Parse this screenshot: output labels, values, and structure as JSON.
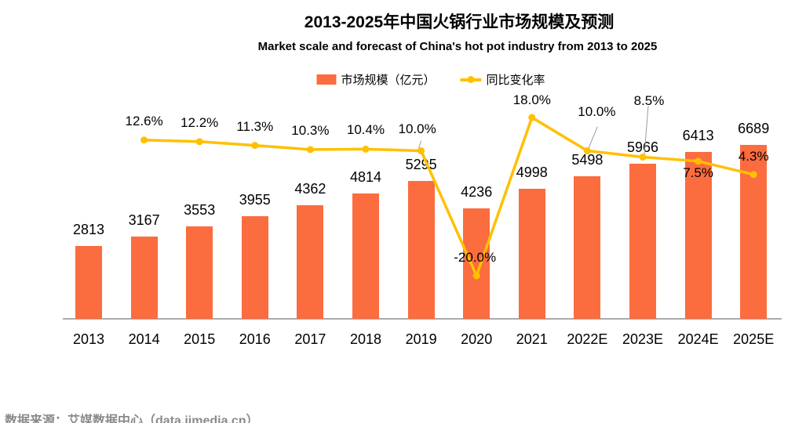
{
  "chart_data": {
    "type": "bar",
    "combo": "bar+line",
    "title": "2013-2025年中国火锅行业市场规模及预测",
    "subtitle": "Market scale and forecast of China's hot pot industry from 2013 to 2025",
    "categories": [
      "2013",
      "2014",
      "2015",
      "2016",
      "2017",
      "2018",
      "2019",
      "2020",
      "2021",
      "2022E",
      "2023E",
      "2024E",
      "2025E"
    ],
    "series": [
      {
        "name": "市场规模（亿元）",
        "type": "bar",
        "color": "#FB6C3F",
        "values": [
          2813,
          3167,
          3553,
          3955,
          4362,
          4814,
          5295,
          4236,
          4998,
          5498,
          5966,
          6413,
          6689
        ]
      },
      {
        "name": "同比变化率",
        "type": "line",
        "color": "#FFC000",
        "unit": "%",
        "values": [
          null,
          12.6,
          12.2,
          11.3,
          10.3,
          10.4,
          10.0,
          -20.0,
          18.0,
          10.0,
          8.5,
          7.5,
          4.3
        ]
      }
    ],
    "legend": {
      "position": "top",
      "items": [
        {
          "label": "市场规模（亿元）",
          "swatch": "bar",
          "color": "#FB6C3F"
        },
        {
          "label": "同比变化率",
          "swatch": "line",
          "color": "#FFC000"
        }
      ]
    },
    "axes": {
      "x_labels_visible": true,
      "y_axis_visible": false,
      "gridlines": false
    },
    "leader_line_color": "#9b9b9b",
    "axis_color": "#ababab",
    "source": "数据来源：艾媒数据中心（data.iimedia.cn）"
  }
}
